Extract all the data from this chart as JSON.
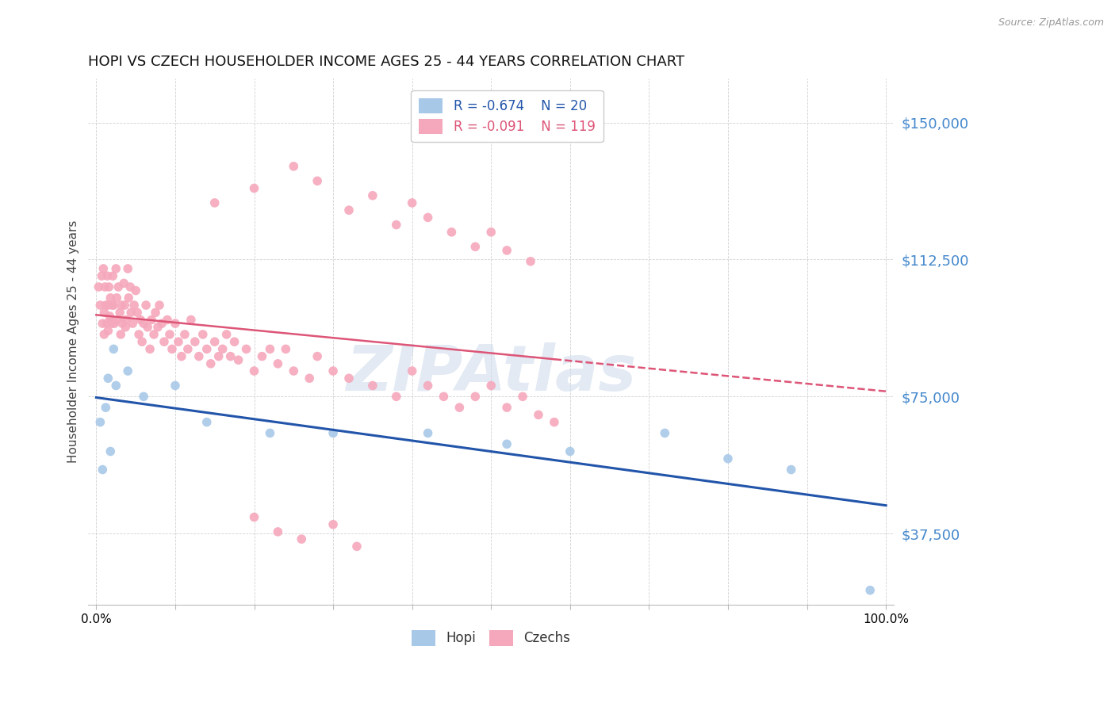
{
  "title": "HOPI VS CZECH HOUSEHOLDER INCOME AGES 25 - 44 YEARS CORRELATION CHART",
  "source": "Source: ZipAtlas.com",
  "ylabel": "Householder Income Ages 25 - 44 years",
  "legend_label1": "Hopi",
  "legend_label2": "Czechs",
  "r1": "-0.674",
  "n1": "20",
  "r2": "-0.091",
  "n2": "119",
  "color_hopi": "#a8c8e8",
  "color_czechs": "#f5a8bc",
  "color_line_hopi": "#2255aa",
  "color_line_czechs": "#dd5577",
  "color_ytick": "#4488cc",
  "ytick_labels": [
    "$37,500",
    "$75,000",
    "$112,500",
    "$150,000"
  ],
  "ytick_values": [
    37500,
    75000,
    112500,
    150000
  ],
  "ylim": [
    18000,
    162000
  ],
  "xlim": [
    -0.01,
    1.01
  ],
  "xtick_values": [
    0.0,
    0.1,
    0.2,
    0.3,
    0.4,
    0.5,
    0.6,
    0.7,
    0.8,
    0.9,
    1.0
  ],
  "xtick_labels": [
    "0.0%",
    "",
    "",
    "",
    "",
    "",
    "",
    "",
    "",
    "",
    "100.0%"
  ],
  "watermark": "ZIPAtlas",
  "hopi_x": [
    0.005,
    0.008,
    0.012,
    0.015,
    0.018,
    0.022,
    0.025,
    0.04,
    0.06,
    0.1,
    0.14,
    0.22,
    0.3,
    0.42,
    0.52,
    0.6,
    0.72,
    0.8,
    0.88,
    0.98
  ],
  "hopi_y": [
    68000,
    55000,
    72000,
    80000,
    60000,
    88000,
    78000,
    82000,
    75000,
    78000,
    68000,
    65000,
    65000,
    65000,
    62000,
    60000,
    65000,
    58000,
    55000,
    22000
  ],
  "czechs_x": [
    0.003,
    0.005,
    0.007,
    0.008,
    0.009,
    0.01,
    0.01,
    0.011,
    0.012,
    0.013,
    0.014,
    0.015,
    0.015,
    0.016,
    0.017,
    0.018,
    0.019,
    0.02,
    0.02,
    0.021,
    0.022,
    0.023,
    0.025,
    0.026,
    0.027,
    0.028,
    0.03,
    0.031,
    0.032,
    0.033,
    0.035,
    0.036,
    0.037,
    0.038,
    0.04,
    0.041,
    0.043,
    0.044,
    0.046,
    0.048,
    0.05,
    0.052,
    0.054,
    0.056,
    0.058,
    0.06,
    0.063,
    0.065,
    0.068,
    0.07,
    0.073,
    0.075,
    0.078,
    0.08,
    0.083,
    0.086,
    0.09,
    0.093,
    0.096,
    0.1,
    0.104,
    0.108,
    0.112,
    0.116,
    0.12,
    0.125,
    0.13,
    0.135,
    0.14,
    0.145,
    0.15,
    0.155,
    0.16,
    0.165,
    0.17,
    0.175,
    0.18,
    0.19,
    0.2,
    0.21,
    0.22,
    0.23,
    0.24,
    0.25,
    0.27,
    0.28,
    0.3,
    0.32,
    0.35,
    0.38,
    0.4,
    0.42,
    0.44,
    0.46,
    0.48,
    0.5,
    0.52,
    0.54,
    0.56,
    0.58,
    0.15,
    0.2,
    0.25,
    0.28,
    0.32,
    0.35,
    0.38,
    0.4,
    0.42,
    0.45,
    0.48,
    0.5,
    0.52,
    0.55,
    0.2,
    0.23,
    0.26,
    0.3,
    0.33
  ],
  "czechs_y": [
    105000,
    100000,
    108000,
    95000,
    110000,
    98000,
    92000,
    105000,
    100000,
    95000,
    108000,
    100000,
    93000,
    105000,
    97000,
    102000,
    96000,
    100000,
    95000,
    108000,
    100000,
    95000,
    110000,
    102000,
    96000,
    105000,
    98000,
    92000,
    100000,
    95000,
    106000,
    100000,
    94000,
    96000,
    110000,
    102000,
    105000,
    98000,
    95000,
    100000,
    104000,
    98000,
    92000,
    96000,
    90000,
    95000,
    100000,
    94000,
    88000,
    96000,
    92000,
    98000,
    94000,
    100000,
    95000,
    90000,
    96000,
    92000,
    88000,
    95000,
    90000,
    86000,
    92000,
    88000,
    96000,
    90000,
    86000,
    92000,
    88000,
    84000,
    90000,
    86000,
    88000,
    92000,
    86000,
    90000,
    85000,
    88000,
    82000,
    86000,
    88000,
    84000,
    88000,
    82000,
    80000,
    86000,
    82000,
    80000,
    78000,
    75000,
    82000,
    78000,
    75000,
    72000,
    75000,
    78000,
    72000,
    75000,
    70000,
    68000,
    128000,
    132000,
    138000,
    134000,
    126000,
    130000,
    122000,
    128000,
    124000,
    120000,
    116000,
    120000,
    115000,
    112000,
    42000,
    38000,
    36000,
    40000,
    34000
  ]
}
